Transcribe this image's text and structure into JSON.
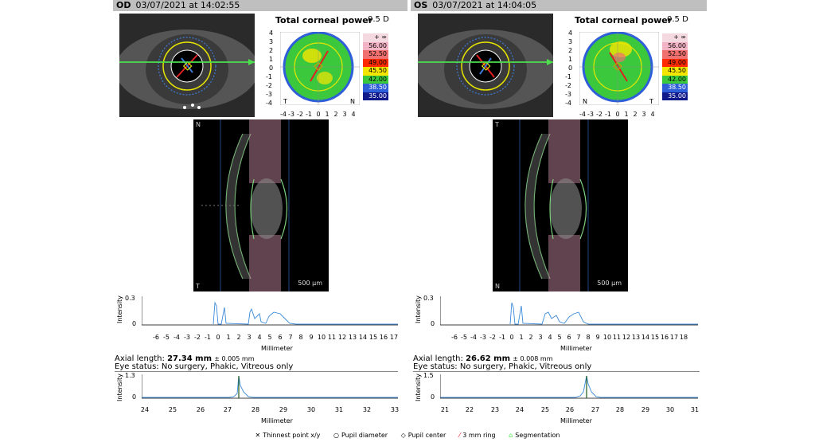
{
  "od": {
    "eye": "OD",
    "date": "03/07/2021 at 14:02:55",
    "map_title": "Total corneal power",
    "map_step": "0.5 D",
    "scale": [
      "+ ∞",
      "56.00",
      "52.50",
      "49.00",
      "45.50",
      "42.00",
      "38.50",
      "35.00"
    ],
    "map_left_letter": "T",
    "map_right_letter": "N",
    "sch_top_letter": "N",
    "sch_bottom_letter": "T",
    "sch_scale": "500 µm",
    "axial_label": "Axial length:",
    "axial_value": "27.34 mm",
    "axial_tol": "± 0.005 mm",
    "status": "Eye status: No surgery, Phakic, Vitreous only",
    "plot1_yticks": [
      "0.3",
      "0"
    ],
    "plot1_xticks": [
      "-6",
      "-5",
      "-4",
      "-3",
      "-2",
      "-1",
      "0",
      "1",
      "2",
      "3",
      "4",
      "5",
      "6",
      "7",
      "8",
      "9",
      "10",
      "11",
      "12",
      "13",
      "14",
      "15",
      "16",
      "17"
    ],
    "plot2_yticks": [
      "1.3",
      "0"
    ],
    "plot2_xticks": [
      "24",
      "25",
      "26",
      "27",
      "28",
      "29",
      "30",
      "31",
      "32",
      "33"
    ]
  },
  "os": {
    "eye": "OS",
    "date": "03/07/2021 at 14:04:05",
    "map_title": "Total corneal power",
    "map_step": "0.5 D",
    "scale": [
      "+ ∞",
      "56.00",
      "52.50",
      "49.00",
      "45.50",
      "42.00",
      "38.50",
      "35.00"
    ],
    "map_left_letter": "N",
    "map_right_letter": "T",
    "sch_top_letter": "T",
    "sch_bottom_letter": "N",
    "sch_scale": "500 µm",
    "axial_label": "Axial length:",
    "axial_value": "26.62 mm",
    "axial_tol": "± 0.008 mm",
    "status": "Eye status: No surgery, Phakic, Vitreous only",
    "plot1_yticks": [
      "0.3",
      "0"
    ],
    "plot1_xticks": [
      "-6",
      "-5",
      "-4",
      "-3",
      "-2",
      "-1",
      "0",
      "1",
      "2",
      "3",
      "4",
      "5",
      "6",
      "7",
      "8",
      "9",
      "10",
      "11",
      "12",
      "13",
      "14",
      "15",
      "16",
      "17",
      "18"
    ],
    "plot2_yticks": [
      "1.5",
      "0"
    ],
    "plot2_xticks": [
      "21",
      "22",
      "23",
      "24",
      "25",
      "26",
      "27",
      "28",
      "29",
      "30",
      "31"
    ]
  },
  "map_ticks": [
    "4",
    "3",
    "2",
    "1",
    "0",
    "-1",
    "-2",
    "-3",
    "-4"
  ],
  "map_xticks": [
    "-4",
    "-3",
    "-2",
    "-1",
    "0",
    "1",
    "2",
    "3",
    "4"
  ],
  "intensity_label": "Intensity",
  "millimeter_label": "Millimeter",
  "legend": {
    "thinnest": "Thinnest point x/y",
    "pupil_diameter": "Pupil diameter",
    "pupil_center": "Pupil center",
    "ring": "3 mm ring",
    "segmentation": "Segmentation"
  },
  "colors": {
    "scale": [
      "#f4d9e0",
      "#f2b3c4",
      "#f07070",
      "#ff2a00",
      "#f5e600",
      "#3cc83c",
      "#2e5fd8",
      "#101a8a"
    ],
    "header": "#bfbfbf"
  }
}
